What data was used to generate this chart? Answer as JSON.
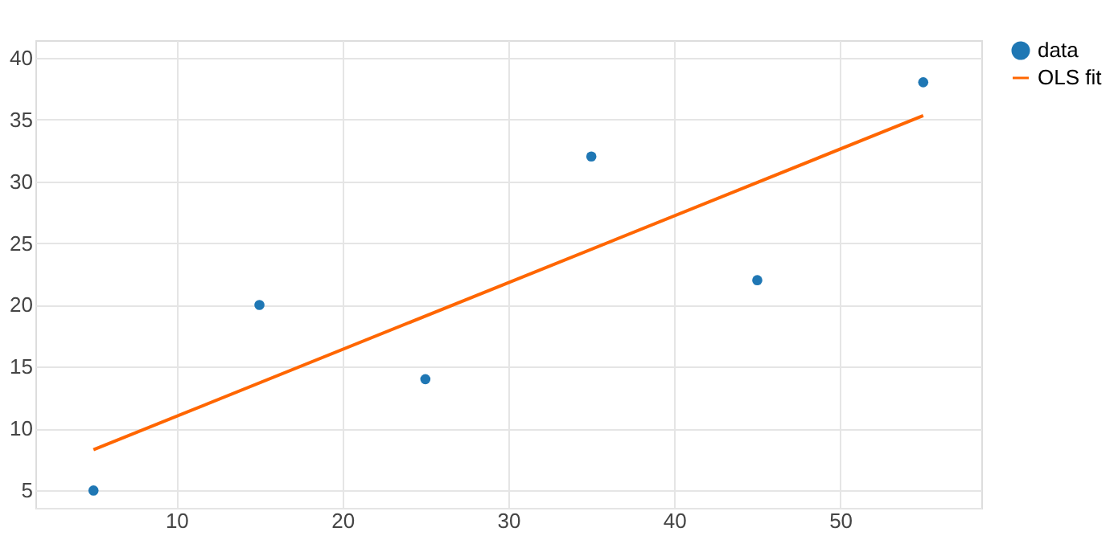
{
  "chart_data": {
    "type": "scatter",
    "xlim": [
      1.5,
      58.5
    ],
    "ylim": [
      3.6,
      41.4
    ],
    "xticks": [
      10,
      20,
      30,
      40,
      50
    ],
    "yticks": [
      5,
      10,
      15,
      20,
      25,
      30,
      35,
      40
    ],
    "grid": true,
    "legend": "top right",
    "series": [
      {
        "name": "data",
        "marker": "circle",
        "color": "#1f77b4",
        "x": [
          5,
          15,
          25,
          35,
          45,
          55
        ],
        "values": [
          5,
          20,
          14,
          32,
          22,
          38
        ]
      },
      {
        "name": "OLS fit",
        "type": "line",
        "line_style": "solid",
        "color": "#ff6600",
        "x": [
          5,
          55
        ],
        "values": [
          8.3,
          35.3
        ]
      }
    ]
  }
}
